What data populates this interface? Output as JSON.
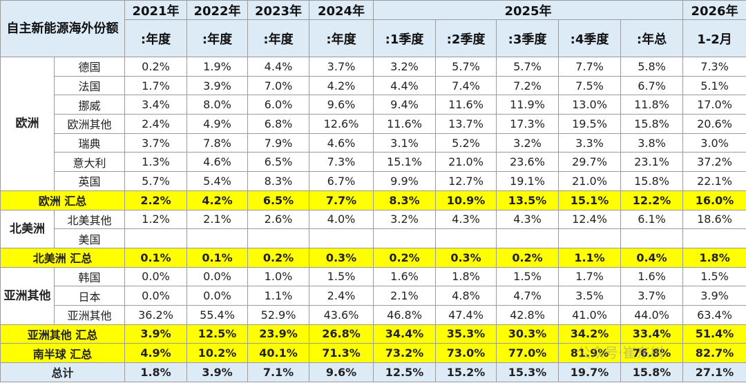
{
  "header": {
    "title": "自主新能源海外份额",
    "years": [
      "2021年",
      "2022年",
      "2023年",
      "2024年",
      "2025年",
      "2026年"
    ],
    "periods": [
      ":年度",
      ":年度",
      ":年度",
      ":年度",
      ":1季度",
      ":2季度",
      ":3季度",
      ":4季度",
      ":年总",
      "1-2月"
    ]
  },
  "groups": [
    {
      "region": "欧洲",
      "rows": [
        {
          "name": "德国",
          "values": [
            "0.2%",
            "1.9%",
            "4.4%",
            "3.7%",
            "3.2%",
            "5.7%",
            "5.7%",
            "7.7%",
            "5.8%",
            "7.3%"
          ]
        },
        {
          "name": "法国",
          "values": [
            "1.7%",
            "3.9%",
            "7.0%",
            "4.2%",
            "4.4%",
            "7.4%",
            "7.2%",
            "7.5%",
            "6.7%",
            "5.1%"
          ]
        },
        {
          "name": "挪威",
          "values": [
            "3.4%",
            "8.0%",
            "6.0%",
            "9.6%",
            "9.4%",
            "11.6%",
            "11.9%",
            "13.0%",
            "11.8%",
            "17.0%"
          ]
        },
        {
          "name": "欧洲其他",
          "values": [
            "2.4%",
            "4.9%",
            "6.8%",
            "12.6%",
            "11.6%",
            "13.7%",
            "17.3%",
            "19.5%",
            "15.8%",
            "20.6%"
          ]
        },
        {
          "name": "瑞典",
          "values": [
            "3.7%",
            "7.8%",
            "7.9%",
            "4.6%",
            "3.1%",
            "5.2%",
            "3.2%",
            "3.3%",
            "3.8%",
            "3.0%"
          ]
        },
        {
          "name": "意大利",
          "values": [
            "1.3%",
            "4.6%",
            "6.5%",
            "7.3%",
            "15.1%",
            "21.0%",
            "23.6%",
            "29.7%",
            "23.1%",
            "37.2%"
          ]
        },
        {
          "name": "英国",
          "values": [
            "5.7%",
            "5.4%",
            "8.3%",
            "6.7%",
            "9.9%",
            "12.7%",
            "19.1%",
            "21.0%",
            "15.8%",
            "22.1%"
          ]
        }
      ],
      "summary": {
        "label": "欧洲 汇总",
        "values": [
          "2.2%",
          "4.2%",
          "6.5%",
          "7.7%",
          "8.3%",
          "10.9%",
          "13.5%",
          "15.1%",
          "12.2%",
          "16.0%"
        ]
      }
    },
    {
      "region": "北美洲",
      "rows": [
        {
          "name": "北美其他",
          "values": [
            "1.2%",
            "2.1%",
            "2.6%",
            "4.0%",
            "3.2%",
            "4.3%",
            "4.3%",
            "12.4%",
            "6.1%",
            "18.6%"
          ]
        },
        {
          "name": "美国",
          "values": [
            null,
            null,
            null,
            null,
            null,
            null,
            null,
            null,
            null,
            null
          ]
        }
      ],
      "summary": {
        "label": "北美洲 汇总",
        "values": [
          "0.1%",
          "0.1%",
          "0.2%",
          "0.3%",
          "0.2%",
          "0.3%",
          "0.2%",
          "1.1%",
          "0.4%",
          "1.8%"
        ]
      }
    },
    {
      "region": "亚洲其他",
      "rows": [
        {
          "name": "韩国",
          "values": [
            "0.0%",
            "0.0%",
            "1.0%",
            "1.5%",
            "1.6%",
            "1.8%",
            "1.5%",
            "1.7%",
            "1.6%",
            "1.5%"
          ]
        },
        {
          "name": "日本",
          "values": [
            "0.0%",
            "0.0%",
            "1.1%",
            "2.4%",
            "2.1%",
            "4.8%",
            "4.7%",
            "3.5%",
            "3.7%",
            "3.9%"
          ]
        },
        {
          "name": "亚洲其他",
          "values": [
            "36.2%",
            "55.4%",
            "52.9%",
            "43.6%",
            "46.8%",
            "47.4%",
            "42.8%",
            "41.0%",
            "44.0%",
            "63.4%"
          ]
        }
      ],
      "summary": {
        "label": "亚洲其他 汇总",
        "values": [
          "3.9%",
          "12.5%",
          "23.9%",
          "26.8%",
          "34.4%",
          "35.3%",
          "30.3%",
          "34.2%",
          "33.4%",
          "51.4%"
        ]
      }
    }
  ],
  "southern": {
    "label": "南半球 汇总",
    "values": [
      "4.9%",
      "10.2%",
      "40.1%",
      "71.3%",
      "73.2%",
      "73.0%",
      "77.0%",
      "81.9%",
      "76.8%",
      "82.7%"
    ]
  },
  "total": {
    "label": "总计",
    "values": [
      "1.8%",
      "3.9%",
      "7.1%",
      "9.6%",
      "12.5%",
      "15.2%",
      "15.3%",
      "19.7%",
      "15.8%",
      "27.1%"
    ]
  },
  "watermark": "公众号·崔东树"
}
